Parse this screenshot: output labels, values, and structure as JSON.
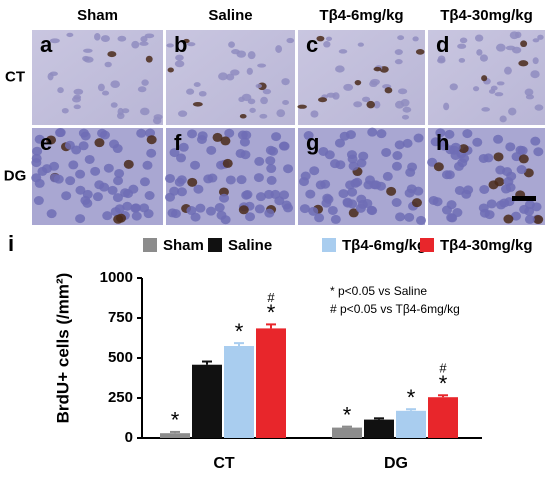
{
  "figure": {
    "columns": [
      "Sham",
      "Saline",
      "Tβ4-6mg/kg",
      "Tβ4-30mg/kg"
    ],
    "rows": [
      "CT",
      "DG"
    ],
    "letters": [
      "a",
      "b",
      "c",
      "d",
      "e",
      "f",
      "g",
      "h"
    ]
  },
  "chart_data": {
    "type": "bar",
    "panel_label": "i",
    "y_label": "BrdU+ cells (/mm²)",
    "categories": [
      "CT",
      "DG"
    ],
    "series": [
      {
        "name": "Sham",
        "color": "#8c8c8c",
        "values": [
          30,
          65
        ],
        "errors": [
          8,
          6
        ],
        "marks": [
          [
            "*"
          ],
          [
            "*"
          ]
        ]
      },
      {
        "name": "Saline",
        "color": "#111111",
        "values": [
          458,
          115
        ],
        "errors": [
          20,
          8
        ]
      },
      {
        "name": "Tβ4-6mg/kg",
        "color": "#a9cdef",
        "values": [
          575,
          170
        ],
        "errors": [
          18,
          10
        ],
        "marks": [
          [
            "*"
          ],
          [
            "*"
          ]
        ]
      },
      {
        "name": "Tβ4-30mg/kg",
        "color": "#e8262b",
        "values": [
          685,
          255
        ],
        "errors": [
          25,
          12
        ],
        "marks": [
          [
            "#",
            "*"
          ],
          [
            "#",
            "*"
          ]
        ]
      }
    ],
    "notes": [
      "*  p<0.05 vs Saline",
      "# p<0.05 vs Tβ4-6mg/kg"
    ],
    "ylim": [
      0,
      1000
    ],
    "yticks": [
      0,
      250,
      500,
      750,
      1000
    ]
  }
}
